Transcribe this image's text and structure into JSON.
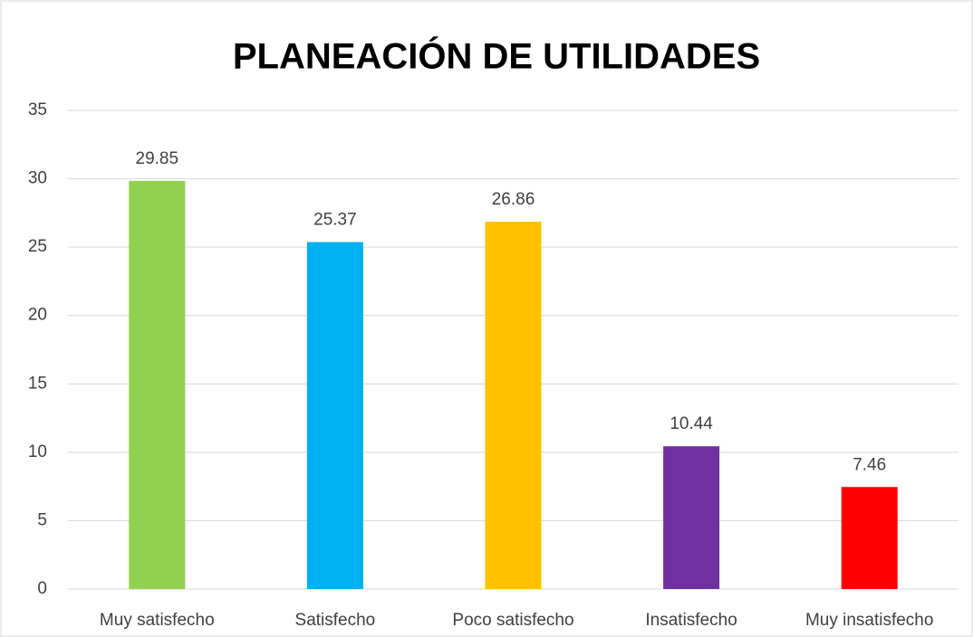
{
  "chart_data": {
    "type": "bar",
    "title": "PLANEACIÓN DE UTILIDADES",
    "categories": [
      "Muy satisfecho",
      "Satisfecho",
      "Poco satisfecho",
      "Insatisfecho",
      "Muy insatisfecho"
    ],
    "values": [
      29.85,
      25.37,
      26.86,
      10.44,
      7.46
    ],
    "colors": [
      "#92d050",
      "#00b0f0",
      "#ffc000",
      "#7030a0",
      "#ff0000"
    ],
    "ylim": [
      0,
      35
    ],
    "yticks": [
      0,
      5,
      10,
      15,
      20,
      25,
      30,
      35
    ],
    "grid": true
  }
}
